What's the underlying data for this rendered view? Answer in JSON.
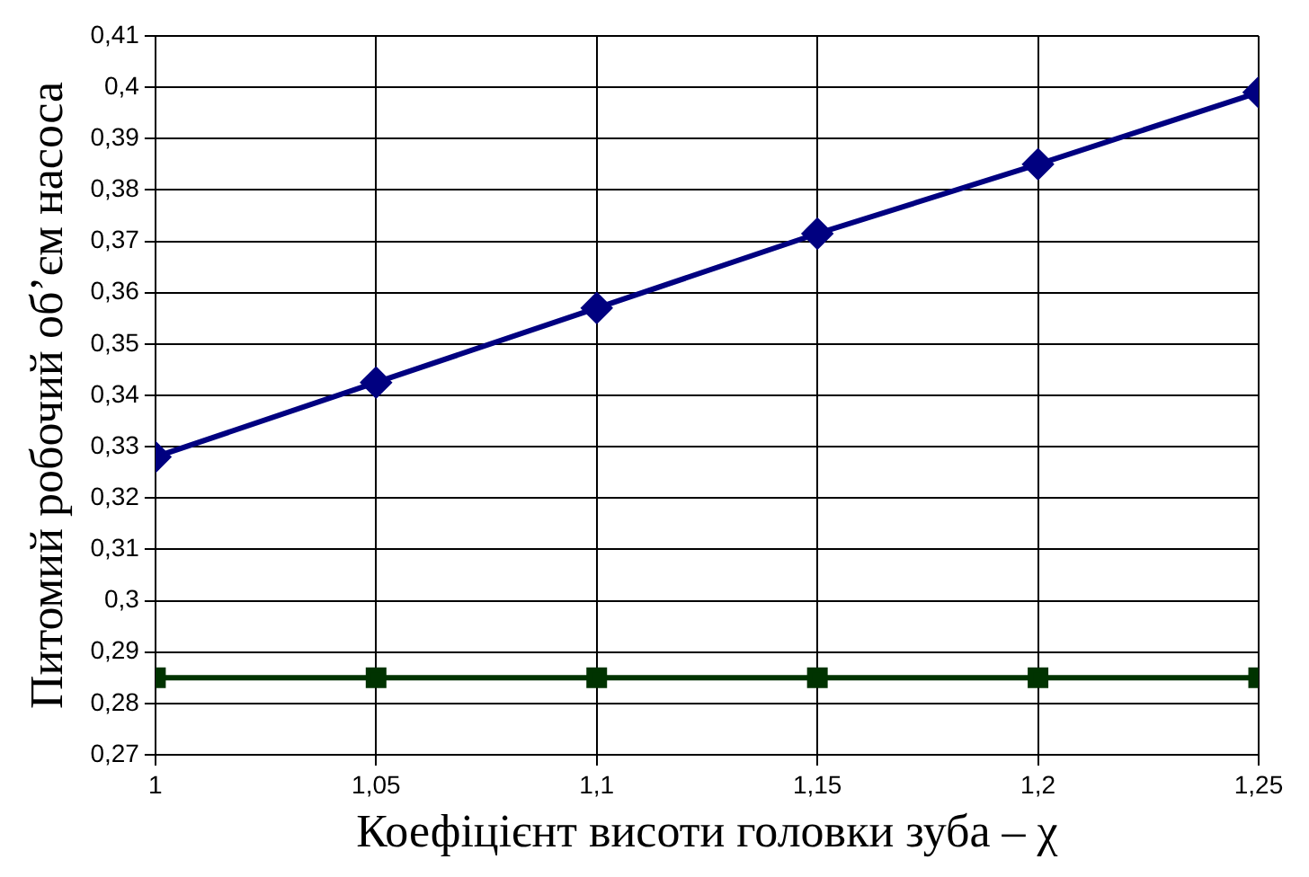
{
  "chart_data": {
    "type": "line",
    "xlabel": "Коефіцієнт висоти головки зуба – χ",
    "ylabel": "Питомий робочий об’єм насоса",
    "x": [
      1,
      1.05,
      1.1,
      1.15,
      1.2,
      1.25
    ],
    "series": [
      {
        "color": "#000080",
        "marker": "diamond",
        "values": [
          0.328,
          0.3425,
          0.357,
          0.3715,
          0.385,
          0.399
        ]
      },
      {
        "color": "#003300",
        "marker": "square",
        "values": [
          0.285,
          0.285,
          0.285,
          0.285,
          0.285,
          0.285
        ]
      }
    ],
    "xlim": [
      1,
      1.25
    ],
    "xticks": [
      1,
      {
        "value": 1.05,
        "label": "1,05"
      },
      {
        "value": 1.1,
        "label": "1,1"
      },
      {
        "value": 1.15,
        "label": "1,15"
      },
      {
        "value": 1.2,
        "label": "1,2"
      },
      {
        "value": 1.25,
        "label": "1,25"
      }
    ],
    "ylim": [
      0.27,
      0.41
    ],
    "yticks": [
      {
        "value": 0.27,
        "label": "0,27"
      },
      {
        "value": 0.28,
        "label": "0,28"
      },
      {
        "value": 0.29,
        "label": "0,29"
      },
      {
        "value": 0.3,
        "label": "0,3"
      },
      {
        "value": 0.31,
        "label": "0,31"
      },
      {
        "value": 0.32,
        "label": "0,32"
      },
      {
        "value": 0.33,
        "label": "0,33"
      },
      {
        "value": 0.34,
        "label": "0,34"
      },
      {
        "value": 0.35,
        "label": "0,35"
      },
      {
        "value": 0.36,
        "label": "0,36"
      },
      {
        "value": 0.37,
        "label": "0,37"
      },
      {
        "value": 0.38,
        "label": "0,38"
      },
      {
        "value": 0.39,
        "label": "0,39"
      },
      {
        "value": 0.4,
        "label": "0,4"
      },
      {
        "value": 0.41,
        "label": "0,41"
      }
    ],
    "grid": true,
    "legend": false,
    "line_style": "solid"
  }
}
